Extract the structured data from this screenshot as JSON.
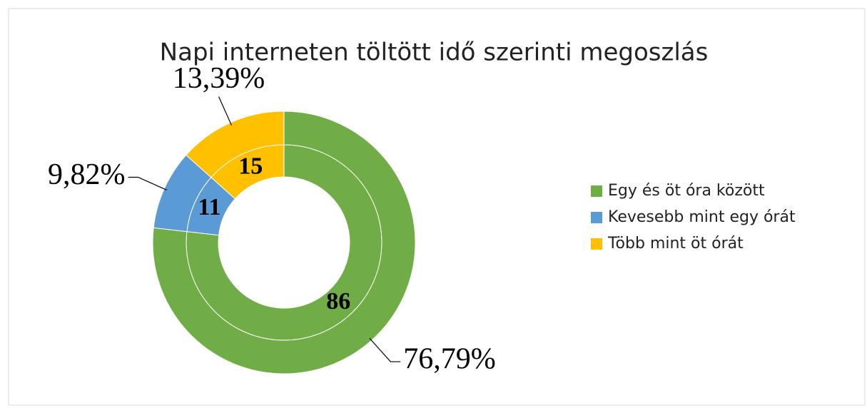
{
  "chart_data": {
    "type": "donut",
    "title": "Napi interneten töltött idő szerinti megoszlás",
    "categories": [
      "Egy és öt óra között",
      "Kevesebb mint egy órát",
      "Több mint öt órát"
    ],
    "colors": [
      "#70ad47",
      "#5b9bd5",
      "#ffc000"
    ],
    "rings": [
      {
        "values": [
          86,
          11,
          15
        ]
      },
      {
        "values": [
          76.79,
          9.82,
          13.39
        ],
        "value_labels": [
          "76,79%",
          "9,82%",
          "13,39%"
        ]
      }
    ],
    "legend": "right"
  }
}
